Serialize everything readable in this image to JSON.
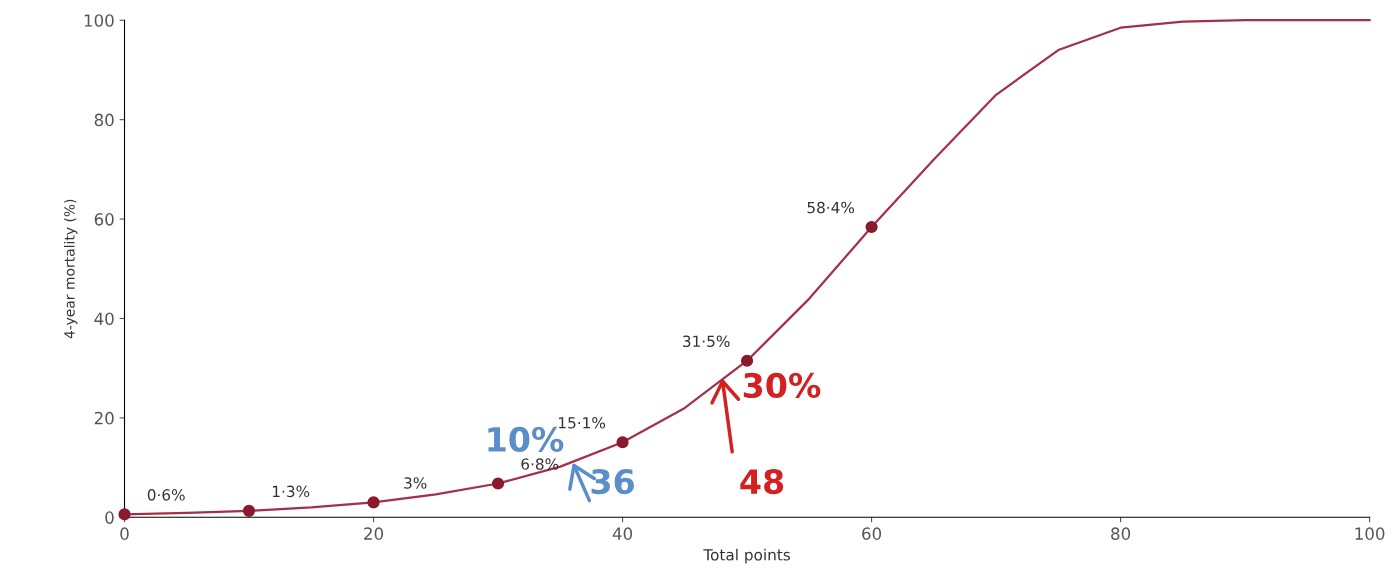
{
  "chart_data": {
    "type": "line",
    "xlabel": "Total points",
    "ylabel": "4-year mortality (%)",
    "xlim": [
      0,
      100
    ],
    "ylim": [
      0,
      100
    ],
    "xticks": [
      0,
      20,
      40,
      60,
      80,
      100
    ],
    "yticks": [
      0,
      20,
      40,
      60,
      80,
      100
    ],
    "grid": false,
    "legend": false,
    "line_style": "solid",
    "series": [
      {
        "color": "#a33048",
        "marker": "none",
        "x": [
          0,
          5,
          10,
          15,
          20,
          25,
          30,
          35,
          40,
          45,
          50,
          55,
          60,
          65,
          70,
          75,
          80,
          85,
          90,
          95,
          100
        ],
        "values": [
          0.6,
          0.9,
          1.3,
          2,
          3,
          4.6,
          6.8,
          10.2,
          15.1,
          22,
          31.5,
          44,
          58.4,
          72,
          85,
          94,
          98.5,
          99.7,
          100,
          100,
          100
        ]
      },
      {
        "type": "scatter",
        "color": "#8b1a2e",
        "marker": "circle",
        "x": [
          0,
          10,
          20,
          30,
          40,
          50,
          60
        ],
        "values": [
          0.6,
          1.3,
          3,
          6.8,
          15.1,
          31.5,
          58.4
        ],
        "value_labels": [
          "0·6%",
          "1·3%",
          "3%",
          "6·8%",
          "15·1%",
          "31·5%",
          "58·4%"
        ]
      }
    ],
    "annotations": [
      "10%",
      {
        "text": "36",
        "x": 36,
        "y": 11
      },
      "30%",
      {
        "text": "48",
        "x": 48,
        "y": 28
      }
    ]
  }
}
